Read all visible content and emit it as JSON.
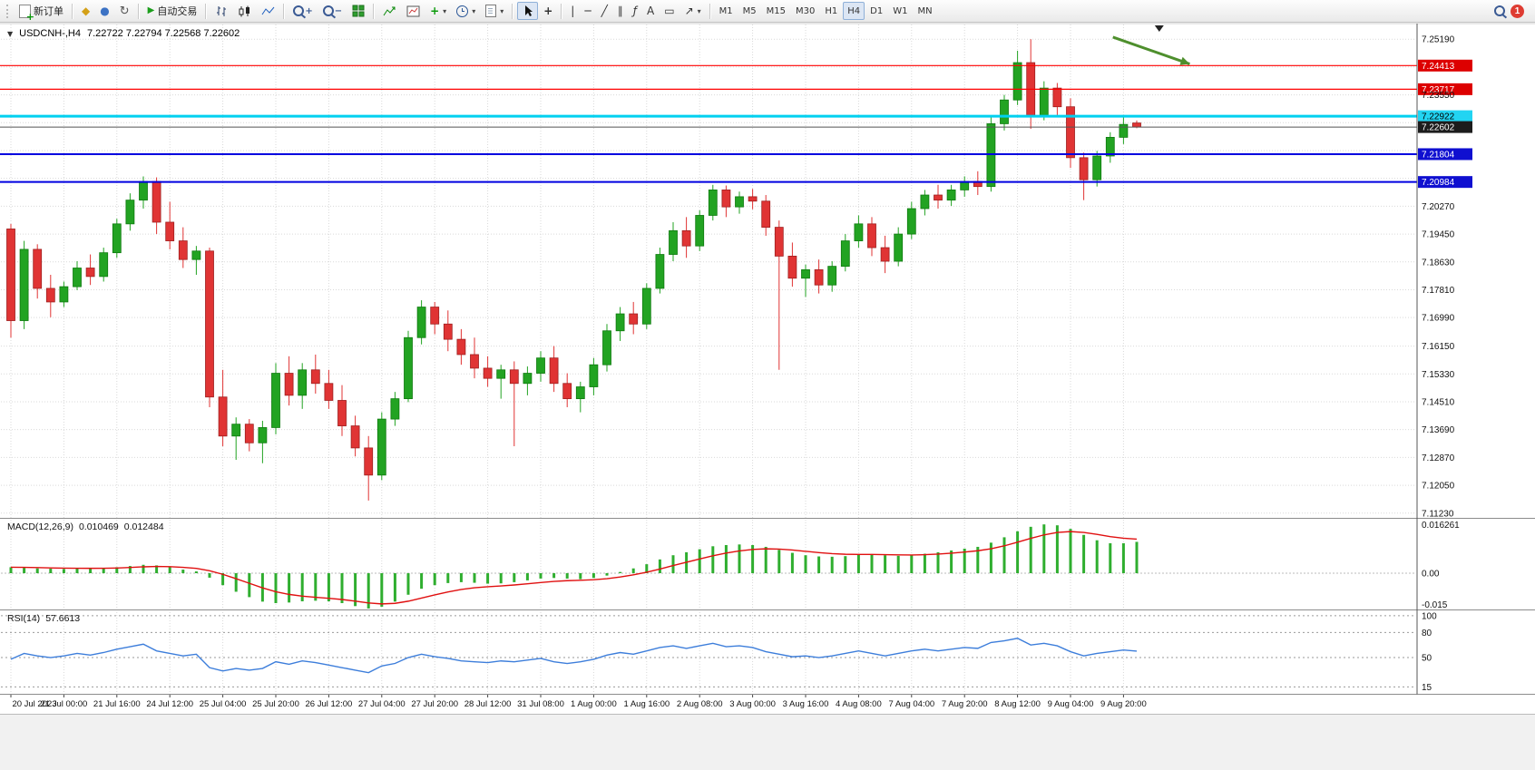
{
  "toolbar": {
    "new_order_label": "新订单",
    "auto_trading_label": "自动交易",
    "timeframes": [
      "M1",
      "M5",
      "M15",
      "M30",
      "H1",
      "H4",
      "D1",
      "W1",
      "MN"
    ],
    "active_timeframe": "H4",
    "notification_count": "1"
  },
  "icons": {
    "collapse": "▼",
    "market_watch": "◆",
    "navigator": "●",
    "refresh": "↻",
    "play": "▶",
    "plus": "+",
    "dropdown": "▾",
    "crosshair": "+",
    "vline": "|",
    "hline": "─",
    "trendline": "╱",
    "channel": "∥",
    "fibonacci": "ƒ",
    "text": "A",
    "text_label": "▭",
    "arrows": "↗"
  },
  "chart": {
    "symbol_period": "USDCNH-,H4",
    "ohlc_text": "7.22722 7.22794 7.22568 7.22602"
  },
  "chart_data": {
    "type": "candlestick",
    "symbol": "USDCNH-",
    "timeframe": "H4",
    "current_bar": {
      "open": 7.22722,
      "high": 7.22794,
      "low": 7.22568,
      "close": 7.22602
    },
    "colors": {
      "bull": "#22a322",
      "bear": "#e03434",
      "background": "#ffffff",
      "grid": "#d9d9d9"
    },
    "y_axis": {
      "labels": [
        "7.25190",
        "7.23550",
        "7.20270",
        "7.19450",
        "7.18630",
        "7.17810",
        "7.16990",
        "7.16150",
        "7.15330",
        "7.14510",
        "7.13690",
        "7.12870",
        "7.12050",
        "7.11230"
      ],
      "grid_only": [
        7.2437,
        7.2273,
        7.2191,
        7.2109
      ]
    },
    "x_axis": {
      "label_every": 4,
      "labels": [
        "20 Jul 2023",
        "21 Jul 00:00",
        "21 Jul 16:00",
        "24 Jul 12:00",
        "25 Jul 04:00",
        "25 Jul 20:00",
        "26 Jul 12:00",
        "27 Jul 04:00",
        "27 Jul 20:00",
        "28 Jul 12:00",
        "31 Jul 08:00",
        "1 Aug 00:00",
        "1 Aug 16:00",
        "2 Aug 08:00",
        "3 Aug 00:00",
        "3 Aug 16:00",
        "4 Aug 08:00",
        "7 Aug 04:00",
        "7 Aug 20:00",
        "8 Aug 12:00",
        "9 Aug 04:00",
        "9 Aug 20:00"
      ]
    },
    "horizontal_lines": [
      {
        "price": 7.24413,
        "label": "7.24413",
        "line_color": "#ff0000",
        "width": 1.2,
        "box_bg": "#dd0000",
        "box_fg": "#ffffff"
      },
      {
        "price": 7.23717,
        "label": "7.23717",
        "line_color": "#ff0000",
        "width": 1.2,
        "box_bg": "#dd0000",
        "box_fg": "#ffffff"
      },
      {
        "price": 7.22922,
        "label": "7.22922",
        "line_color": "#00d0f0",
        "width": 3,
        "box_bg": "#22d4f2",
        "box_fg": "#000000"
      },
      {
        "price": 7.22602,
        "label": "7.22602",
        "line_color": "#555555",
        "width": 1,
        "box_bg": "#1c1c1c",
        "box_fg": "#ffffff"
      },
      {
        "price": 7.21804,
        "label": "7.21804",
        "line_color": "#0000e0",
        "width": 2,
        "box_bg": "#0f0fd0",
        "box_fg": "#ffffff"
      },
      {
        "price": 7.20984,
        "label": "7.20984",
        "line_color": "#0000e0",
        "width": 2,
        "box_bg": "#0f0fd0",
        "box_fg": "#ffffff"
      }
    ],
    "annotations": {
      "arrow": {
        "from": {
          "index": 83.2,
          "price": 7.2525
        },
        "to": {
          "index": 89,
          "price": 7.2446
        },
        "color": "#4e8f2d"
      },
      "shift_marker_index": 86.7
    },
    "candles": [
      [
        7.196,
        7.1975,
        7.164,
        7.169
      ],
      [
        7.169,
        7.1925,
        7.1665,
        7.19
      ],
      [
        7.19,
        7.1915,
        7.1755,
        7.1785
      ],
      [
        7.1785,
        7.1825,
        7.17,
        7.1745
      ],
      [
        7.1745,
        7.1805,
        7.173,
        7.179
      ],
      [
        7.179,
        7.1865,
        7.178,
        7.1845
      ],
      [
        7.1845,
        7.1885,
        7.1795,
        7.182
      ],
      [
        7.182,
        7.1905,
        7.1805,
        7.189
      ],
      [
        7.189,
        7.199,
        7.1875,
        7.1975
      ],
      [
        7.1975,
        7.2065,
        7.1955,
        7.2045
      ],
      [
        7.2045,
        7.2115,
        7.202,
        7.21
      ],
      [
        7.21,
        7.2112,
        7.1945,
        7.198
      ],
      [
        7.198,
        7.204,
        7.19,
        7.1925
      ],
      [
        7.1925,
        7.1965,
        7.1845,
        7.187
      ],
      [
        7.187,
        7.191,
        7.1825,
        7.1895
      ],
      [
        7.1895,
        7.1905,
        7.1435,
        7.1465
      ],
      [
        7.1465,
        7.1545,
        7.132,
        7.135
      ],
      [
        7.135,
        7.1405,
        7.128,
        7.1385
      ],
      [
        7.1385,
        7.14,
        7.1305,
        7.133
      ],
      [
        7.133,
        7.1395,
        7.127,
        7.1375
      ],
      [
        7.1375,
        7.1565,
        7.1355,
        7.1535
      ],
      [
        7.1535,
        7.1585,
        7.144,
        7.147
      ],
      [
        7.147,
        7.1565,
        7.143,
        7.1545
      ],
      [
        7.1545,
        7.159,
        7.1475,
        7.1505
      ],
      [
        7.1505,
        7.1545,
        7.143,
        7.1455
      ],
      [
        7.1455,
        7.15,
        7.135,
        7.138
      ],
      [
        7.138,
        7.141,
        7.129,
        7.1315
      ],
      [
        7.1315,
        7.135,
        7.116,
        7.1235
      ],
      [
        7.1235,
        7.142,
        7.122,
        7.14
      ],
      [
        7.14,
        7.148,
        7.138,
        7.146
      ],
      [
        7.146,
        7.166,
        7.145,
        7.164
      ],
      [
        7.164,
        7.175,
        7.162,
        7.173
      ],
      [
        7.173,
        7.1745,
        7.165,
        7.168
      ],
      [
        7.168,
        7.172,
        7.16,
        7.1635
      ],
      [
        7.1635,
        7.1665,
        7.156,
        7.159
      ],
      [
        7.159,
        7.164,
        7.152,
        7.155
      ],
      [
        7.155,
        7.1585,
        7.1495,
        7.152
      ],
      [
        7.152,
        7.156,
        7.146,
        7.1545
      ],
      [
        7.1545,
        7.157,
        7.132,
        7.1505
      ],
      [
        7.1505,
        7.1555,
        7.147,
        7.1535
      ],
      [
        7.1535,
        7.16,
        7.151,
        7.158
      ],
      [
        7.158,
        7.1615,
        7.148,
        7.1505
      ],
      [
        7.1505,
        7.1535,
        7.1435,
        7.146
      ],
      [
        7.146,
        7.151,
        7.142,
        7.1495
      ],
      [
        7.1495,
        7.158,
        7.147,
        7.156
      ],
      [
        7.156,
        7.168,
        7.154,
        7.166
      ],
      [
        7.166,
        7.173,
        7.163,
        7.171
      ],
      [
        7.171,
        7.1745,
        7.165,
        7.168
      ],
      [
        7.168,
        7.18,
        7.1665,
        7.1785
      ],
      [
        7.1785,
        7.1905,
        7.177,
        7.1885
      ],
      [
        7.1885,
        7.198,
        7.1865,
        7.1955
      ],
      [
        7.1955,
        7.1995,
        7.1875,
        7.191
      ],
      [
        7.191,
        7.2015,
        7.1895,
        7.2
      ],
      [
        7.2,
        7.209,
        7.1985,
        7.2075
      ],
      [
        7.2075,
        7.2088,
        7.1995,
        7.2025
      ],
      [
        7.2025,
        7.207,
        7.2005,
        7.2055
      ],
      [
        7.2055,
        7.2078,
        7.2018,
        7.2042
      ],
      [
        7.2042,
        7.206,
        7.194,
        7.1965
      ],
      [
        7.1965,
        7.1985,
        7.1545,
        7.188
      ],
      [
        7.188,
        7.192,
        7.179,
        7.1815
      ],
      [
        7.1815,
        7.1855,
        7.176,
        7.184
      ],
      [
        7.184,
        7.187,
        7.177,
        7.1795
      ],
      [
        7.1795,
        7.1865,
        7.1775,
        7.185
      ],
      [
        7.185,
        7.1945,
        7.1835,
        7.1925
      ],
      [
        7.1925,
        7.2,
        7.1905,
        7.1975
      ],
      [
        7.1975,
        7.1995,
        7.188,
        7.1905
      ],
      [
        7.1905,
        7.194,
        7.183,
        7.1865
      ],
      [
        7.1865,
        7.1965,
        7.185,
        7.1945
      ],
      [
        7.1945,
        7.204,
        7.193,
        7.202
      ],
      [
        7.202,
        7.2075,
        7.2,
        7.206
      ],
      [
        7.206,
        7.209,
        7.202,
        7.2045
      ],
      [
        7.2045,
        7.209,
        7.2028,
        7.2075
      ],
      [
        7.2075,
        7.2115,
        7.2055,
        7.21
      ],
      [
        7.21,
        7.213,
        7.206,
        7.2085
      ],
      [
        7.2085,
        7.229,
        7.207,
        7.227
      ],
      [
        7.227,
        7.2355,
        7.225,
        7.234
      ],
      [
        7.234,
        7.2485,
        7.2325,
        7.245
      ],
      [
        7.245,
        7.2519,
        7.2255,
        7.2295
      ],
      [
        7.2295,
        7.2395,
        7.228,
        7.2375
      ],
      [
        7.2375,
        7.239,
        7.229,
        7.232
      ],
      [
        7.232,
        7.2345,
        7.214,
        7.217
      ],
      [
        7.217,
        7.2185,
        7.2045,
        7.2105
      ],
      [
        7.2105,
        7.219,
        7.2085,
        7.2175
      ],
      [
        7.2175,
        7.2245,
        7.2155,
        7.223
      ],
      [
        7.223,
        7.229,
        7.221,
        7.2268
      ],
      [
        7.22722,
        7.22794,
        7.22568,
        7.22602
      ]
    ],
    "indicators": {
      "macd": {
        "label": "MACD(12,26,9)",
        "value_main": "0.010469",
        "value_signal": "0.012484",
        "scale_labels": [
          "0.016261",
          "0.00",
          "-0.015"
        ],
        "histogram_color": "#2fae2f",
        "signal_color": "#e01010",
        "histogram": [
          0.002,
          0.0018,
          0.0016,
          0.0015,
          0.0014,
          0.0015,
          0.0016,
          0.0017,
          0.002,
          0.0024,
          0.0028,
          0.0026,
          0.002,
          0.0012,
          0.0006,
          -0.0015,
          -0.004,
          -0.0062,
          -0.008,
          -0.0095,
          -0.01,
          -0.0098,
          -0.0094,
          -0.0092,
          -0.0094,
          -0.01,
          -0.011,
          -0.0118,
          -0.0112,
          -0.0095,
          -0.0072,
          -0.0052,
          -0.004,
          -0.0033,
          -0.003,
          -0.0032,
          -0.0035,
          -0.0034,
          -0.003,
          -0.0024,
          -0.0018,
          -0.0016,
          -0.0018,
          -0.002,
          -0.0016,
          -0.0008,
          0.0004,
          0.0016,
          0.003,
          0.0046,
          0.006,
          0.007,
          0.008,
          0.009,
          0.0094,
          0.0096,
          0.0094,
          0.0088,
          0.0078,
          0.0068,
          0.006,
          0.0056,
          0.0055,
          0.0057,
          0.0061,
          0.0063,
          0.006,
          0.0058,
          0.006,
          0.0065,
          0.007,
          0.0076,
          0.0082,
          0.0088,
          0.0102,
          0.012,
          0.014,
          0.0155,
          0.0163,
          0.016,
          0.0148,
          0.0128,
          0.011,
          0.01,
          0.01,
          0.010469
        ]
      },
      "rsi": {
        "label": "RSI(14)",
        "value": "57.6613",
        "scale_labels": [
          "100",
          "80",
          "50",
          "15"
        ],
        "levels": [
          100,
          80,
          50,
          15
        ],
        "line_color": "#3d7edb",
        "values": [
          48,
          55,
          52,
          50,
          52,
          55,
          53,
          56,
          60,
          63,
          66,
          58,
          55,
          52,
          54,
          38,
          34,
          37,
          35,
          37,
          45,
          42,
          46,
          44,
          41,
          38,
          35,
          32,
          40,
          43,
          50,
          54,
          51,
          49,
          46,
          45,
          44,
          46,
          45,
          47,
          49,
          45,
          43,
          45,
          48,
          53,
          56,
          54,
          58,
          62,
          64,
          61,
          64,
          67,
          63,
          64,
          62,
          57,
          54,
          51,
          52,
          50,
          52,
          55,
          58,
          55,
          52,
          55,
          58,
          60,
          58,
          60,
          62,
          61,
          68,
          70,
          73,
          65,
          67,
          64,
          57,
          52,
          55,
          57,
          59,
          57.66
        ]
      }
    }
  }
}
